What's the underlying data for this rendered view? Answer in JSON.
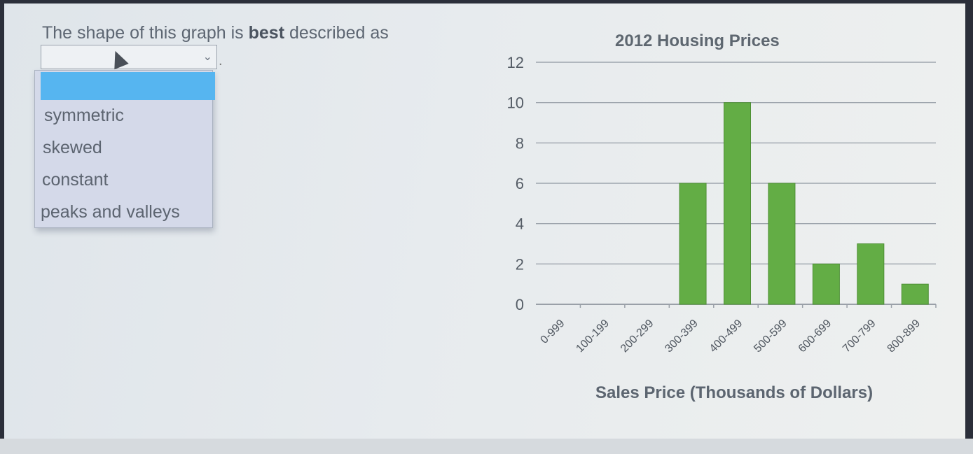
{
  "question": {
    "prefix": "The shape of this graph is ",
    "emphasis": "best",
    "suffix": " described as"
  },
  "dropdown": {
    "selected": "",
    "options": [
      "symmetric",
      "skewed",
      "constant",
      "peaks and valleys"
    ]
  },
  "colors": {
    "bar": "#63ad45",
    "highlight": "#56b5f0"
  },
  "chart_data": {
    "type": "bar",
    "title": "2012 Housing Prices",
    "xlabel": "Sales Price (Thousands of Dollars)",
    "ylabel": "",
    "categories": [
      "0-999",
      "100-199",
      "200-299",
      "300-399",
      "400-499",
      "500-599",
      "600-699",
      "700-799",
      "800-899"
    ],
    "values": [
      0,
      0,
      0,
      6,
      10,
      6,
      2,
      3,
      1
    ],
    "ylim": [
      0,
      12
    ],
    "yticks": [
      0,
      2,
      4,
      6,
      8,
      10,
      12
    ],
    "grid": true
  }
}
